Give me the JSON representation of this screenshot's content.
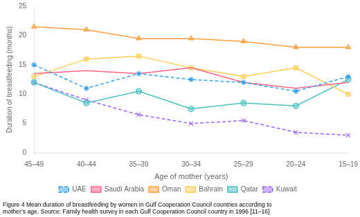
{
  "chart_data": {
    "type": "line",
    "categories": [
      "45–49",
      "40–44",
      "35–39",
      "30–34",
      "25–29",
      "20–24",
      "15–19"
    ],
    "series": [
      {
        "name": "UAE",
        "values": [
          15.0,
          11.0,
          13.5,
          12.5,
          12.0,
          10.5,
          13.0
        ],
        "marker": "star",
        "line_style": "dashed"
      },
      {
        "name": "Saudi Arabia",
        "values": [
          13.5,
          14.0,
          13.5,
          14.5,
          12.0,
          11.0,
          12.0
        ],
        "marker": "none",
        "line_style": "solid"
      },
      {
        "name": "Oman",
        "values": [
          21.5,
          21.0,
          19.5,
          19.5,
          19.0,
          18.0,
          18.0
        ],
        "marker": "triangle",
        "line_style": "solid"
      },
      {
        "name": "Bahrain",
        "values": [
          13.0,
          16.0,
          16.5,
          14.5,
          13.0,
          14.5,
          10.0
        ],
        "marker": "square",
        "line_style": "solid"
      },
      {
        "name": "Qatar",
        "values": [
          12.0,
          8.5,
          10.5,
          7.5,
          8.5,
          8.0,
          12.5
        ],
        "marker": "circle",
        "line_style": "solid"
      },
      {
        "name": "Kuwait",
        "values": [
          12.0,
          9.0,
          6.5,
          5.0,
          5.5,
          3.5,
          3.0
        ],
        "marker": "x",
        "line_style": "dashed"
      }
    ],
    "x_label": "Age of mother (years)",
    "y_label": "Duration of breastfeeding (months)",
    "ylim": [
      0,
      25
    ],
    "yticks": [
      0,
      5,
      10,
      15,
      20,
      25
    ],
    "grid": false,
    "legend": "bottom",
    "caption": [
      "Figure 4 Mean duration of breastfeeding by women in Gulf Cooperation Council countries according to",
      "mother’s age. Source: Family health survey in each Gulf Cooperation Council country in 1996 [11–16]"
    ]
  }
}
